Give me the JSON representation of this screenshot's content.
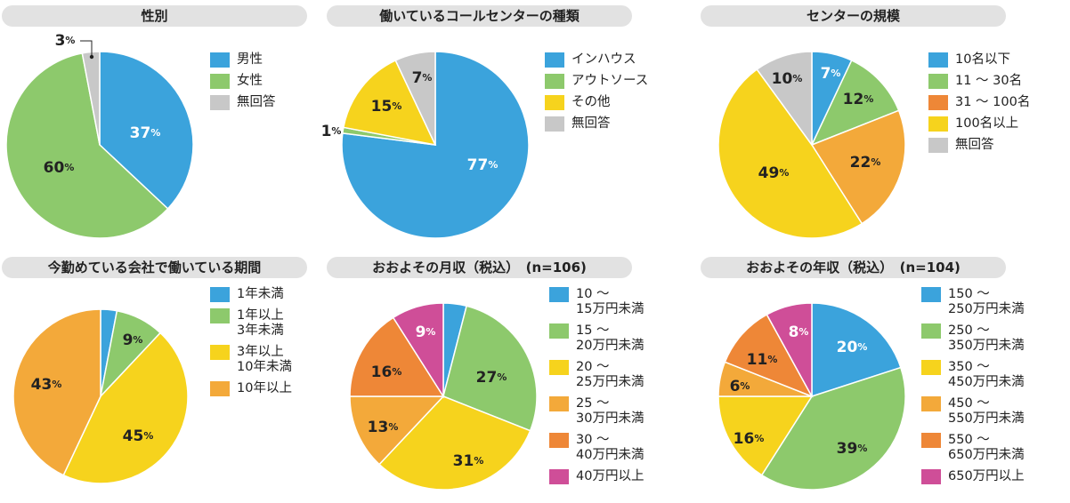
{
  "charts": [
    {
      "type": "pie",
      "title": "性別",
      "categories": [
        "男性",
        "女性",
        "無回答"
      ],
      "values": [
        37,
        60,
        3
      ],
      "colors": [
        "#3ba3dc",
        "#8dc96c",
        "#c8c8c8"
      ],
      "unit": "%"
    },
    {
      "type": "pie",
      "title": "働いているコールセンターの種類",
      "categories": [
        "インハウス",
        "アウトソース",
        "その他",
        "無回答"
      ],
      "values": [
        77,
        1,
        15,
        7
      ],
      "colors": [
        "#3ba3dc",
        "#8dc96c",
        "#f6d31d",
        "#c8c8c8"
      ],
      "unit": "%"
    },
    {
      "type": "pie",
      "title": "センターの規模",
      "categories": [
        "10名以下",
        "11 〜 30名",
        "31 〜 100名",
        "100名以上",
        "無回答"
      ],
      "values": [
        7,
        12,
        22,
        49,
        10
      ],
      "colors": [
        "#3ba3dc",
        "#8dc96c",
        "#f3a93a",
        "#f6d31d",
        "#c8c8c8"
      ],
      "legend_colors": [
        "#3ba3dc",
        "#8dc96c",
        "#ee8737",
        "#f6d31d",
        "#c8c8c8"
      ],
      "unit": "%"
    },
    {
      "type": "pie",
      "title": "今勤めている会社で働いている期間",
      "categories": [
        "1年未満",
        "1年以上\n3年未満",
        "3年以上\n10年未満",
        "10年以上"
      ],
      "values": [
        3,
        9,
        45,
        43
      ],
      "colors": [
        "#3ba3dc",
        "#8dc96c",
        "#f6d31d",
        "#f3a93a"
      ],
      "unit": "%"
    },
    {
      "type": "pie",
      "title": "おおよその月収（税込）　(n=106)",
      "categories": [
        "10 〜\n15万円未満",
        "15 〜\n20万円未満",
        "20 〜\n25万円未満",
        "25 〜\n30万円未満",
        "30 〜\n40万円未満",
        "40万円以上"
      ],
      "values": [
        4,
        27,
        31,
        13,
        16,
        9
      ],
      "colors": [
        "#3ba3dc",
        "#8dc96c",
        "#f6d31d",
        "#f3a93a",
        "#ee8737",
        "#cf4e98"
      ],
      "unit": "%"
    },
    {
      "type": "pie",
      "title": "おおよその年収（税込）　(n=104)",
      "categories": [
        "150 〜\n250万円未満",
        "250 〜\n350万円未満",
        "350 〜\n450万円未満",
        "450 〜\n550万円未満",
        "550 〜\n650万円未満",
        "650万円以上"
      ],
      "values": [
        20,
        39,
        16,
        6,
        11,
        8
      ],
      "colors": [
        "#3ba3dc",
        "#8dc96c",
        "#f6d31d",
        "#f3a93a",
        "#ee8737",
        "#cf4e98"
      ],
      "unit": "%"
    }
  ]
}
